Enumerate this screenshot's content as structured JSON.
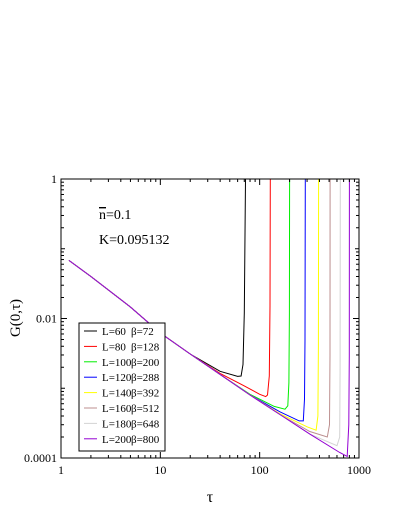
{
  "chart_data": {
    "type": "line",
    "xlabel": "τ",
    "ylabel": "G(0,τ)",
    "x_scale": "log",
    "y_scale": "log",
    "xlim": [
      1,
      1000
    ],
    "ylim": [
      0.0001,
      1
    ],
    "x_ticks": [
      1,
      10,
      100,
      1000
    ],
    "x_tick_labels": [
      "1",
      "10",
      "100",
      "1000"
    ],
    "y_ticks": [
      0.0001,
      0.01,
      1
    ],
    "y_tick_labels": [
      "0.0001",
      "0.01",
      "1"
    ],
    "grid": false,
    "legend_position": "bottom-left",
    "annotations": [
      {
        "id": "nbar",
        "overline": "n",
        "text": "=0.1"
      },
      {
        "id": "kval",
        "text": "K=0.095132"
      }
    ],
    "series": [
      {
        "name": "L=60   β=72",
        "label_L": "L=60",
        "label_beta": "β=72",
        "color": "#000000",
        "beta": 72,
        "points": [
          [
            1.2,
            0.068
          ],
          [
            2,
            0.04
          ],
          [
            5,
            0.0146
          ],
          [
            10,
            0.0062
          ],
          [
            20,
            0.0031
          ],
          [
            40,
            0.00175
          ],
          [
            60,
            0.00148
          ],
          [
            65,
            0.0015
          ],
          [
            68,
            0.0022
          ],
          [
            70,
            0.012
          ],
          [
            72,
            1
          ]
        ]
      },
      {
        "name": "L=80   β=128",
        "label_L": "L=80",
        "label_beta": "β=128",
        "color": "#ff0000",
        "beta": 128,
        "points": [
          [
            1.2,
            0.068
          ],
          [
            2,
            0.04
          ],
          [
            5,
            0.0146
          ],
          [
            10,
            0.0062
          ],
          [
            20,
            0.0031
          ],
          [
            40,
            0.00163
          ],
          [
            70,
            0.00108
          ],
          [
            100,
            0.00082
          ],
          [
            115,
            0.00076
          ],
          [
            120,
            0.0008
          ],
          [
            125,
            0.0015
          ],
          [
            127,
            0.015
          ],
          [
            128,
            1
          ]
        ]
      },
      {
        "name": "L=100 β=200",
        "label_L": "L=100",
        "label_beta": "β=200",
        "color": "#00ee00",
        "beta": 200,
        "points": [
          [
            1.2,
            0.068
          ],
          [
            2,
            0.04
          ],
          [
            5,
            0.0146
          ],
          [
            10,
            0.0062
          ],
          [
            20,
            0.0031
          ],
          [
            40,
            0.00158
          ],
          [
            80,
            0.00082
          ],
          [
            140,
            0.00055
          ],
          [
            180,
            0.0005
          ],
          [
            192,
            0.00056
          ],
          [
            197,
            0.0012
          ],
          [
            199,
            0.012
          ],
          [
            200,
            1
          ]
        ]
      },
      {
        "name": "L=120 β=288",
        "label_L": "L=120",
        "label_beta": "β=288",
        "color": "#0000ff",
        "beta": 288,
        "points": [
          [
            1.2,
            0.068
          ],
          [
            2,
            0.04
          ],
          [
            5,
            0.0146
          ],
          [
            10,
            0.0062
          ],
          [
            20,
            0.0031
          ],
          [
            40,
            0.00158
          ],
          [
            80,
            0.0008
          ],
          [
            160,
            0.00046
          ],
          [
            250,
            0.00034
          ],
          [
            275,
            0.00034
          ],
          [
            283,
            0.0007
          ],
          [
            286,
            0.005
          ],
          [
            288,
            1
          ]
        ]
      },
      {
        "name": "L=140 β=392",
        "label_L": "L=140",
        "label_beta": "β=392",
        "color": "#ffff00",
        "beta": 392,
        "points": [
          [
            1.2,
            0.068
          ],
          [
            2,
            0.04
          ],
          [
            5,
            0.0146
          ],
          [
            10,
            0.0062
          ],
          [
            20,
            0.0031
          ],
          [
            40,
            0.00158
          ],
          [
            80,
            0.0008
          ],
          [
            160,
            0.00043
          ],
          [
            300,
            0.00028
          ],
          [
            370,
            0.00025
          ],
          [
            386,
            0.0004
          ],
          [
            390,
            0.004
          ],
          [
            392,
            1
          ]
        ]
      },
      {
        "name": "L=160 β=512",
        "label_L": "L=160",
        "label_beta": "β=512",
        "color": "#bc8f8f",
        "beta": 512,
        "points": [
          [
            1.2,
            0.068
          ],
          [
            2,
            0.04
          ],
          [
            5,
            0.0146
          ],
          [
            10,
            0.0062
          ],
          [
            20,
            0.0031
          ],
          [
            40,
            0.00158
          ],
          [
            80,
            0.0008
          ],
          [
            160,
            0.00042
          ],
          [
            320,
            0.00024
          ],
          [
            480,
            0.0002
          ],
          [
            505,
            0.0003
          ],
          [
            510,
            0.003
          ],
          [
            512,
            1
          ]
        ]
      },
      {
        "name": "L=180 β=648",
        "label_L": "L=180",
        "label_beta": "β=648",
        "color": "#d3d3d3",
        "beta": 648,
        "points": [
          [
            1.2,
            0.068
          ],
          [
            2,
            0.04
          ],
          [
            5,
            0.0146
          ],
          [
            10,
            0.0062
          ],
          [
            20,
            0.0031
          ],
          [
            40,
            0.00158
          ],
          [
            80,
            0.0008
          ],
          [
            160,
            0.00042
          ],
          [
            320,
            0.00022
          ],
          [
            600,
            0.00015
          ],
          [
            640,
            0.0002
          ],
          [
            646,
            0.002
          ],
          [
            648,
            1
          ]
        ]
      },
      {
        "name": "L=200 β=800",
        "label_L": "L=200",
        "label_beta": "β=800",
        "color": "#9400d3",
        "beta": 800,
        "points": [
          [
            1.2,
            0.068
          ],
          [
            2,
            0.04
          ],
          [
            5,
            0.0146
          ],
          [
            10,
            0.0062
          ],
          [
            20,
            0.0031
          ],
          [
            40,
            0.00158
          ],
          [
            80,
            0.0008
          ],
          [
            160,
            0.00042
          ],
          [
            320,
            0.00022
          ],
          [
            640,
            0.00012
          ],
          [
            760,
            0.000105
          ],
          [
            790,
            0.0003
          ],
          [
            798,
            0.003
          ],
          [
            800,
            1
          ]
        ]
      }
    ]
  }
}
